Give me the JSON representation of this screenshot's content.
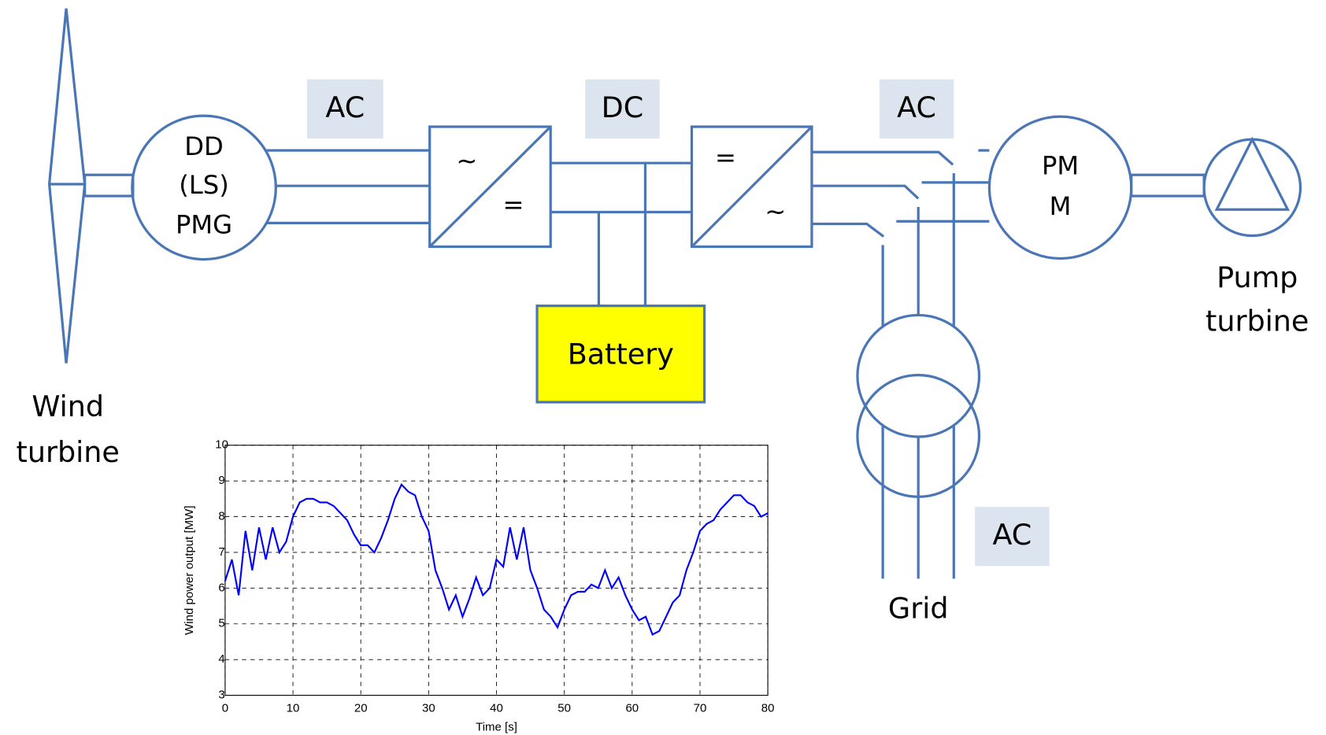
{
  "wind_turbine": {
    "label": [
      "Wind",
      "turbine"
    ]
  },
  "generator": {
    "label": [
      "DD",
      "(LS)",
      "PMG"
    ]
  },
  "links": [
    "AC",
    "DC",
    "AC",
    "AC"
  ],
  "rectifier": {
    "input": "~",
    "output": "="
  },
  "inverter": {
    "input": "=",
    "output": "~"
  },
  "battery": {
    "label": "Battery"
  },
  "motor": {
    "label": [
      "PM",
      "M"
    ]
  },
  "pump": {
    "label": [
      "Pump",
      "turbine"
    ]
  },
  "grid": {
    "label": "Grid"
  },
  "chart_data": {
    "type": "line",
    "xlabel": "Time [s]",
    "ylabel": "Wind power output [MW]",
    "x": [
      0,
      1,
      2,
      3,
      4,
      5,
      6,
      7,
      8,
      9,
      10,
      11,
      12,
      13,
      14,
      15,
      16,
      17,
      18,
      19,
      20,
      21,
      22,
      23,
      24,
      25,
      26,
      27,
      28,
      29,
      30,
      31,
      32,
      33,
      34,
      35,
      36,
      37,
      38,
      39,
      40,
      41,
      42,
      43,
      44,
      45,
      46,
      47,
      48,
      49,
      50,
      51,
      52,
      53,
      54,
      55,
      56,
      57,
      58,
      59,
      60,
      61,
      62,
      63,
      64,
      65,
      66,
      67,
      68,
      69,
      70,
      71,
      72,
      73,
      74,
      75,
      76,
      77,
      78,
      79,
      80
    ],
    "series": [
      {
        "color": "#0000ff",
        "values": [
          6.2,
          6.8,
          5.8,
          7.6,
          6.5,
          7.7,
          6.8,
          7.7,
          7.0,
          7.3,
          8.0,
          8.4,
          8.5,
          8.5,
          8.4,
          8.4,
          8.3,
          8.1,
          7.9,
          7.5,
          7.2,
          7.2,
          7.0,
          7.4,
          7.9,
          8.5,
          8.9,
          8.7,
          8.6,
          8.0,
          7.6,
          6.5,
          6.0,
          5.4,
          5.8,
          5.2,
          5.7,
          6.3,
          5.8,
          6.0,
          6.8,
          6.6,
          7.7,
          6.8,
          7.7,
          6.5,
          6.0,
          5.4,
          5.2,
          4.9,
          5.4,
          5.8,
          5.9,
          5.9,
          6.1,
          6.0,
          6.5,
          6.0,
          6.3,
          5.8,
          5.4,
          5.1,
          5.2,
          4.7,
          4.8,
          5.2,
          5.6,
          5.8,
          6.5,
          7.0,
          7.6,
          7.8,
          7.9,
          8.2,
          8.4,
          8.6,
          8.6,
          8.4,
          8.3,
          8.0,
          8.1
        ]
      }
    ],
    "xlim": [
      0,
      80
    ],
    "xticks": [
      0,
      10,
      20,
      30,
      40,
      50,
      60,
      70,
      80
    ],
    "ylim": [
      3,
      10
    ],
    "yticks": [
      3,
      4,
      5,
      6,
      7,
      8,
      9,
      10
    ],
    "grid": true
  }
}
